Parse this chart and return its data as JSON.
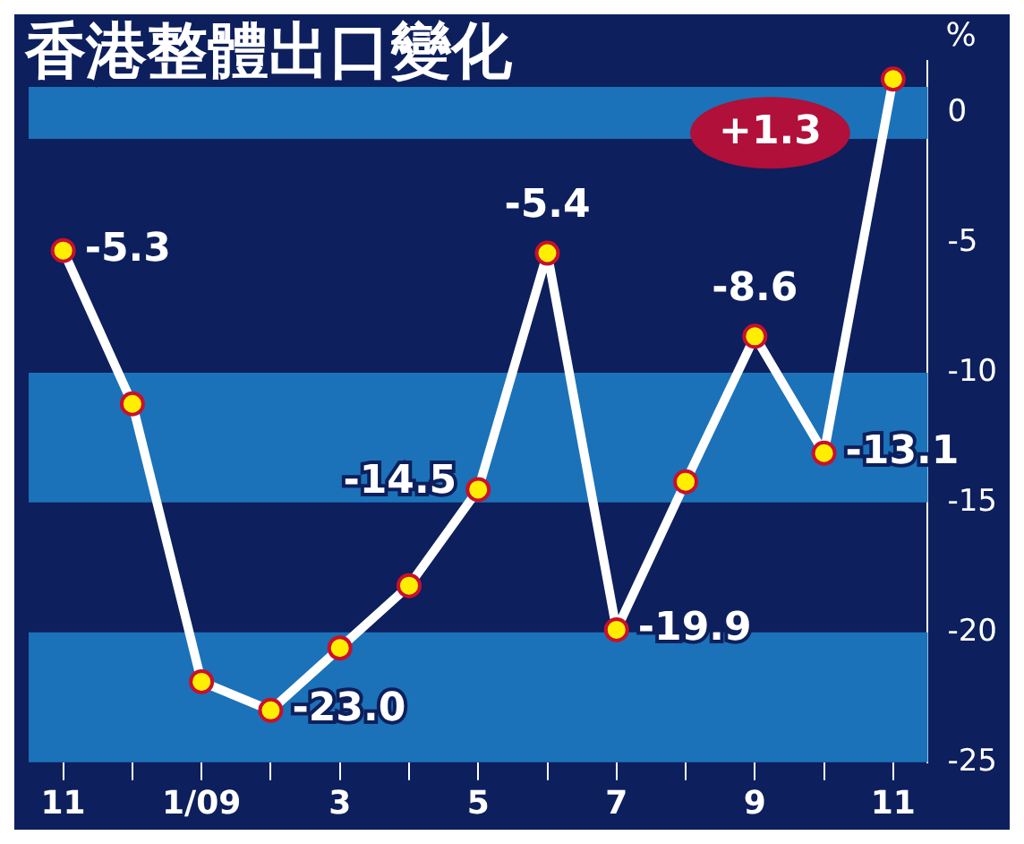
{
  "chart_data": {
    "type": "line",
    "title": "香港整體出口變化",
    "ylabel": "%",
    "categories": [
      "11",
      null,
      "1/09",
      null,
      "3",
      null,
      "5",
      null,
      "7",
      null,
      "9",
      null,
      "11"
    ],
    "series": [
      {
        "color": "#ffffff",
        "values": [
          -5.3,
          -11.2,
          -21.9,
          -23.0,
          -20.6,
          -18.2,
          -14.5,
          -5.4,
          -19.9,
          -14.2,
          -8.6,
          -13.1,
          1.3
        ],
        "value_labels": [
          "-5.3",
          null,
          null,
          "-23.0",
          null,
          null,
          "-14.5",
          "-5.4",
          "-19.9",
          null,
          "-8.6",
          "-13.1",
          "+1.3"
        ]
      }
    ],
    "ylim": [
      -25,
      2
    ],
    "yticks": [
      0,
      -5,
      -10,
      -15,
      -20,
      -25
    ],
    "bands": [
      {
        "axis": "y",
        "from": 1,
        "to": -1,
        "color": "#1b72b8"
      },
      {
        "axis": "y",
        "from": -10,
        "to": -15,
        "color": "#1b72b8"
      },
      {
        "axis": "y",
        "from": -20,
        "to": -25,
        "color": "#1b72b8"
      }
    ],
    "legend": false,
    "marker": "circle",
    "line_style": "solid"
  }
}
